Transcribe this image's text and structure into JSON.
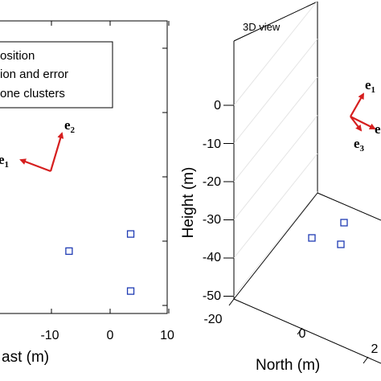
{
  "chart_data": [
    {
      "type": "scatter",
      "xlabel": "ast (m)",
      "x_ticks": [
        "-10",
        "0",
        "10"
      ],
      "xlim": [
        -19,
        10
      ],
      "ylim": [
        -40,
        30
      ],
      "legend": {
        "placement": "top-left",
        "entries": [
          "osition",
          "ion and error",
          "one clusters"
        ]
      },
      "series": [
        {
          "values": [
            {
              "x": -7,
              "y": -10
            },
            {
              "x": 3.5,
              "y": -7
            },
            {
              "x": 3.5,
              "y": -17
            }
          ]
        }
      ],
      "vectors": [
        {
          "label": "e",
          "subscript": "2",
          "from": [
            -10,
            4
          ],
          "to": [
            -8.3,
            14
          ]
        },
        {
          "label": "e",
          "subscript": "1",
          "from": [
            -10,
            4
          ],
          "to": [
            -15,
            7
          ]
        }
      ],
      "marker_color": "#1f3bb3",
      "vector_color": "#d61f1f"
    },
    {
      "type": "scatter",
      "title": "3D view",
      "zlabel": "Height (m)",
      "ylabel": "North (m)",
      "z_ticks": [
        "0",
        "-10",
        "-20",
        "-30",
        "-40",
        "-50"
      ],
      "north_ticks": [
        "-20",
        "0",
        "2"
      ],
      "zlim": [
        -50,
        0
      ],
      "series": [
        {
          "values": [
            {
              "north": -2,
              "z": -37
            },
            {
              "north": 10,
              "z": -31
            },
            {
              "north": 9,
              "z": -38
            }
          ]
        }
      ],
      "vectors": [
        {
          "label": "e",
          "subscript": "1"
        },
        {
          "label": "e",
          "subscript": ""
        },
        {
          "label": "e",
          "subscript": "3"
        }
      ],
      "marker_color": "#1f3bb3",
      "vector_color": "#d61f1f"
    }
  ]
}
